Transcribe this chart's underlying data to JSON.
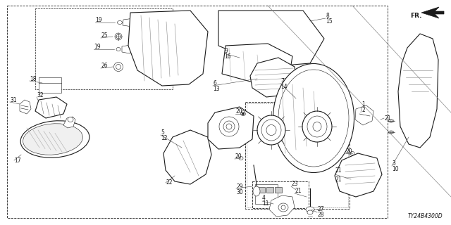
{
  "bg_color": "#ffffff",
  "diagram_code": "TY24B4300D",
  "figsize": [
    6.4,
    3.2
  ],
  "dpi": 100,
  "lw_main": 0.8,
  "lw_thin": 0.4,
  "lw_thick": 1.2,
  "label_fontsize": 5.5,
  "code_fontsize": 5.5,
  "line_color": "#1a1a1a",
  "shade_color": "#888888",
  "light_shade": "#cccccc"
}
